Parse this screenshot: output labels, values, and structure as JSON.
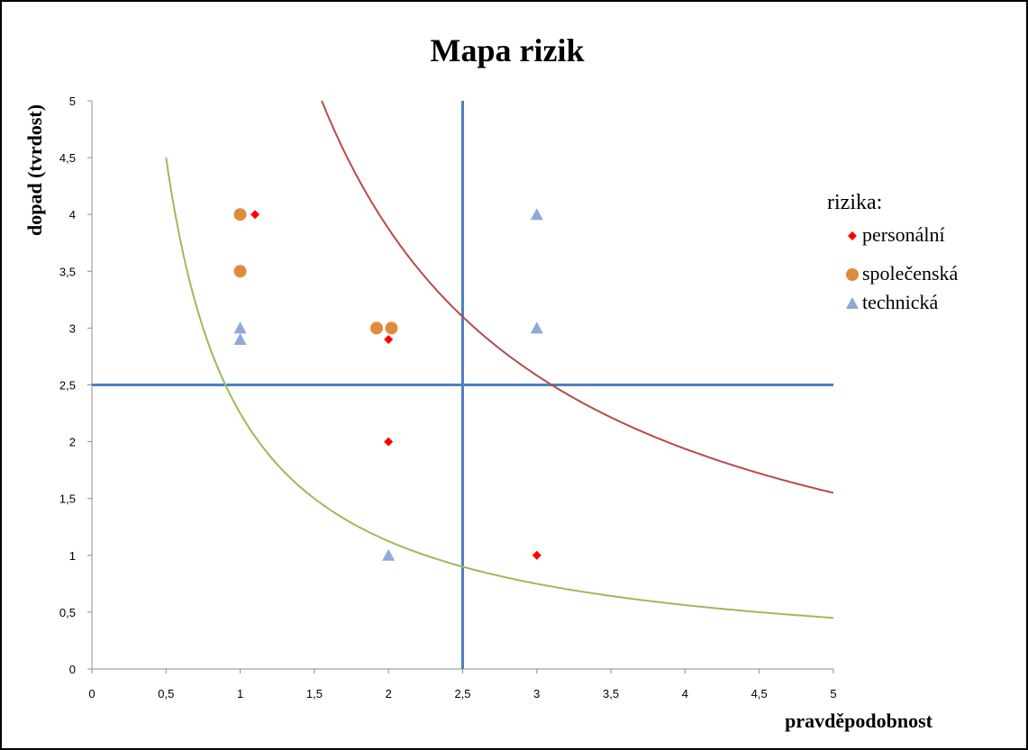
{
  "chart_data": {
    "type": "scatter",
    "title": "Mapa rizik",
    "xlabel": "pravděpodobnost",
    "ylabel": "dopad (tvrdost)",
    "xlim": [
      0,
      5
    ],
    "ylim": [
      0,
      5
    ],
    "x_ticks": [
      "0",
      "0,5",
      "1",
      "1,5",
      "2",
      "2,5",
      "3",
      "3,5",
      "4",
      "4,5",
      "5"
    ],
    "y_ticks": [
      "0",
      "0,5",
      "1",
      "1,5",
      "2",
      "2,5",
      "3",
      "3,5",
      "4",
      "4,5",
      "5"
    ],
    "legend_title": "rizika:",
    "legend_position": "right",
    "series": [
      {
        "name": "personální",
        "marker": "diamond",
        "color": "#ff0000",
        "points": [
          [
            1.1,
            4.0
          ],
          [
            2.0,
            2.9
          ],
          [
            2.0,
            2.0
          ],
          [
            3.0,
            1.0
          ]
        ]
      },
      {
        "name": "společenská",
        "marker": "circle",
        "color": "#e08a3c",
        "points": [
          [
            1.0,
            4.0
          ],
          [
            1.0,
            3.5
          ],
          [
            1.92,
            3.0
          ],
          [
            2.02,
            3.0
          ]
        ]
      },
      {
        "name": "technická",
        "marker": "triangle",
        "color": "#8ea9d6",
        "points": [
          [
            1.0,
            3.0
          ],
          [
            1.0,
            2.9
          ],
          [
            2.0,
            1.0
          ],
          [
            3.0,
            4.0
          ],
          [
            3.0,
            3.0
          ]
        ]
      }
    ],
    "reference_lines": {
      "color": "#4f81bd",
      "vertical_x": 2.5,
      "horizontal_y": 2.5
    },
    "curves": [
      {
        "color": "#b84a4a",
        "k": 7.75,
        "x_range": [
          1.55,
          5
        ]
      },
      {
        "color": "#9bbb59",
        "k": 2.25,
        "x_range": [
          0.5,
          5
        ]
      }
    ]
  }
}
